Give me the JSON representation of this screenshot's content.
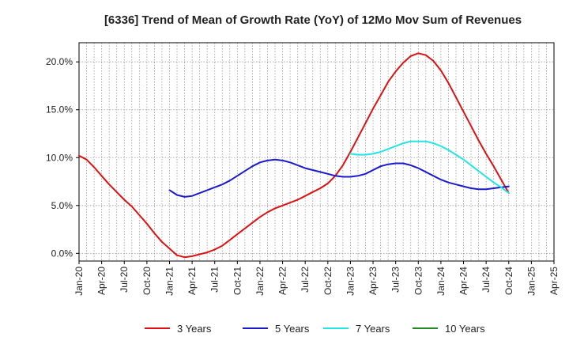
{
  "chart_data": {
    "type": "line",
    "title": "[6336]  Trend of Mean of Growth Rate (YoY) of 12Mo Mov Sum of Revenues",
    "xlabel": "",
    "ylabel": "",
    "x_tick_labels": [
      "Jan-20",
      "Apr-20",
      "Jul-20",
      "Oct-20",
      "Jan-21",
      "Apr-21",
      "Jul-21",
      "Oct-21",
      "Jan-22",
      "Apr-22",
      "Jul-22",
      "Oct-22",
      "Jan-23",
      "Apr-23",
      "Jul-23",
      "Oct-23",
      "Jan-24",
      "Apr-24",
      "Jul-24",
      "Oct-24",
      "Jan-25",
      "Apr-25"
    ],
    "y_ticks": [
      0,
      5,
      10,
      15,
      20
    ],
    "y_tick_labels": [
      "0.0%",
      "5.0%",
      "10.0%",
      "15.0%",
      "20.0%"
    ],
    "ylim": [
      -0.8,
      22.0
    ],
    "x_range_months": [
      0,
      63
    ],
    "grid": true,
    "legend_position": "bottom",
    "series": [
      {
        "name": "3 Years",
        "color": "#dd1111",
        "points": [
          [
            0,
            10.2
          ],
          [
            1,
            9.8
          ],
          [
            2,
            9.0
          ],
          [
            3,
            8.1
          ],
          [
            4,
            7.2
          ],
          [
            5,
            6.4
          ],
          [
            6,
            5.6
          ],
          [
            7,
            4.9
          ],
          [
            8,
            4.0
          ],
          [
            9,
            3.1
          ],
          [
            10,
            2.1
          ],
          [
            11,
            1.2
          ],
          [
            12,
            0.5
          ],
          [
            13,
            -0.2
          ],
          [
            14,
            -0.4
          ],
          [
            15,
            -0.3
          ],
          [
            16,
            -0.1
          ],
          [
            17,
            0.1
          ],
          [
            18,
            0.4
          ],
          [
            19,
            0.8
          ],
          [
            20,
            1.4
          ],
          [
            21,
            2.0
          ],
          [
            22,
            2.6
          ],
          [
            23,
            3.2
          ],
          [
            24,
            3.8
          ],
          [
            25,
            4.3
          ],
          [
            26,
            4.7
          ],
          [
            27,
            5.0
          ],
          [
            28,
            5.3
          ],
          [
            29,
            5.6
          ],
          [
            30,
            6.0
          ],
          [
            31,
            6.4
          ],
          [
            32,
            6.8
          ],
          [
            33,
            7.3
          ],
          [
            34,
            8.1
          ],
          [
            35,
            9.2
          ],
          [
            36,
            10.6
          ],
          [
            37,
            12.1
          ],
          [
            38,
            13.6
          ],
          [
            39,
            15.1
          ],
          [
            40,
            16.5
          ],
          [
            41,
            17.9
          ],
          [
            42,
            19.0
          ],
          [
            43,
            19.9
          ],
          [
            44,
            20.6
          ],
          [
            45,
            20.9
          ],
          [
            46,
            20.7
          ],
          [
            47,
            20.1
          ],
          [
            48,
            19.1
          ],
          [
            49,
            17.8
          ],
          [
            50,
            16.3
          ],
          [
            51,
            14.8
          ],
          [
            52,
            13.3
          ],
          [
            53,
            11.8
          ],
          [
            54,
            10.4
          ],
          [
            55,
            9.1
          ],
          [
            56,
            7.7
          ],
          [
            57,
            6.3
          ]
        ]
      },
      {
        "name": "5 Years",
        "color": "#1a1acc",
        "points": [
          [
            12,
            6.6
          ],
          [
            13,
            6.1
          ],
          [
            14,
            5.9
          ],
          [
            15,
            6.0
          ],
          [
            16,
            6.3
          ],
          [
            17,
            6.6
          ],
          [
            18,
            6.9
          ],
          [
            19,
            7.2
          ],
          [
            20,
            7.6
          ],
          [
            21,
            8.1
          ],
          [
            22,
            8.6
          ],
          [
            23,
            9.1
          ],
          [
            24,
            9.5
          ],
          [
            25,
            9.7
          ],
          [
            26,
            9.8
          ],
          [
            27,
            9.7
          ],
          [
            28,
            9.5
          ],
          [
            29,
            9.2
          ],
          [
            30,
            8.9
          ],
          [
            31,
            8.7
          ],
          [
            32,
            8.5
          ],
          [
            33,
            8.3
          ],
          [
            34,
            8.1
          ],
          [
            35,
            8.0
          ],
          [
            36,
            8.0
          ],
          [
            37,
            8.1
          ],
          [
            38,
            8.3
          ],
          [
            39,
            8.7
          ],
          [
            40,
            9.1
          ],
          [
            41,
            9.3
          ],
          [
            42,
            9.4
          ],
          [
            43,
            9.4
          ],
          [
            44,
            9.2
          ],
          [
            45,
            8.9
          ],
          [
            46,
            8.5
          ],
          [
            47,
            8.1
          ],
          [
            48,
            7.7
          ],
          [
            49,
            7.4
          ],
          [
            50,
            7.2
          ],
          [
            51,
            7.0
          ],
          [
            52,
            6.8
          ],
          [
            53,
            6.7
          ],
          [
            54,
            6.7
          ],
          [
            55,
            6.8
          ],
          [
            56,
            6.9
          ],
          [
            57,
            7.0
          ]
        ]
      },
      {
        "name": "7 Years",
        "color": "#22e5e5",
        "points": [
          [
            36,
            10.4
          ],
          [
            37,
            10.3
          ],
          [
            38,
            10.3
          ],
          [
            39,
            10.4
          ],
          [
            40,
            10.6
          ],
          [
            41,
            10.9
          ],
          [
            42,
            11.2
          ],
          [
            43,
            11.5
          ],
          [
            44,
            11.7
          ],
          [
            45,
            11.7
          ],
          [
            46,
            11.7
          ],
          [
            47,
            11.5
          ],
          [
            48,
            11.2
          ],
          [
            49,
            10.8
          ],
          [
            50,
            10.3
          ],
          [
            51,
            9.8
          ],
          [
            52,
            9.2
          ],
          [
            53,
            8.6
          ],
          [
            54,
            8.0
          ],
          [
            55,
            7.4
          ],
          [
            56,
            6.9
          ],
          [
            57,
            6.3
          ]
        ]
      },
      {
        "name": "10 Years",
        "color": "#228822",
        "points": []
      }
    ]
  }
}
